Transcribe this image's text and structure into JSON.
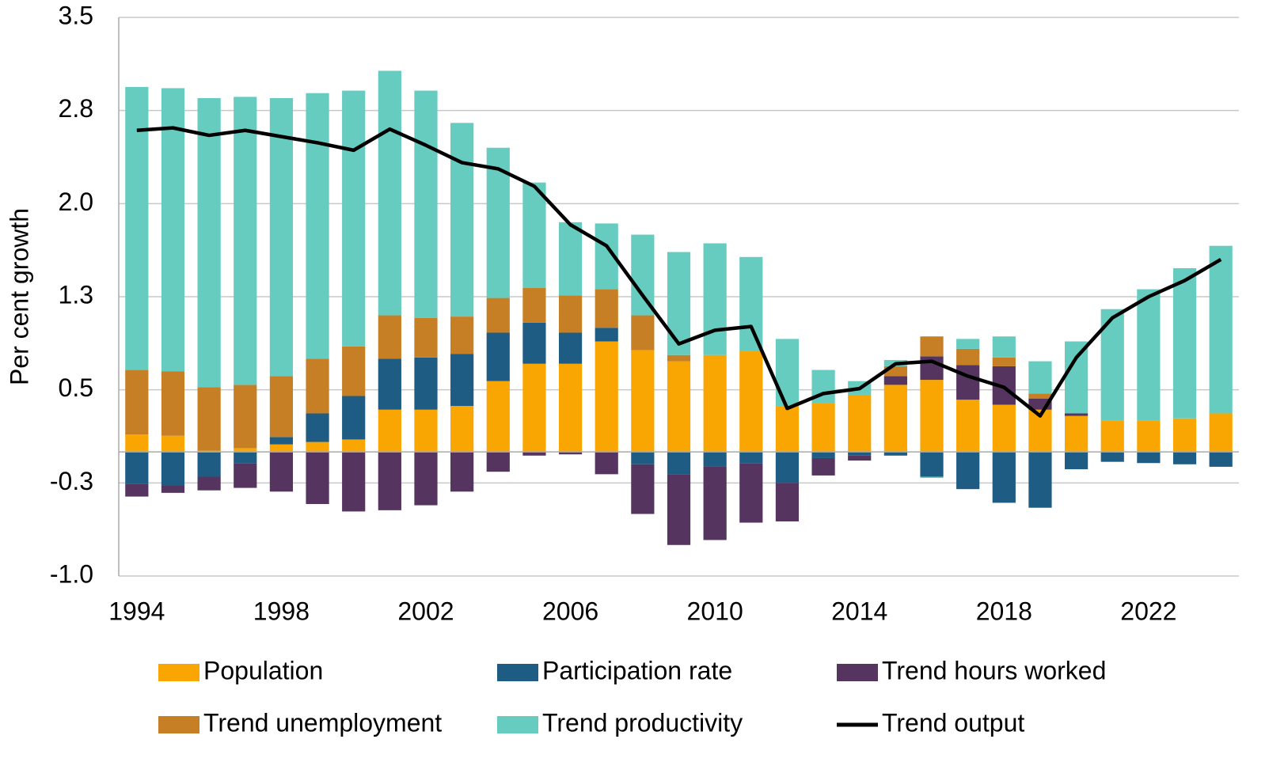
{
  "chart_data": {
    "type": "bar",
    "stacked": true,
    "y_label": "Per cent growth",
    "x": [
      1994,
      1995,
      1996,
      1997,
      1998,
      1999,
      2000,
      2001,
      2002,
      2003,
      2004,
      2005,
      2006,
      2007,
      2008,
      2009,
      2010,
      2011,
      2012,
      2013,
      2014,
      2015,
      2016,
      2017,
      2018,
      2019,
      2020,
      2021,
      2022,
      2023,
      2024
    ],
    "xlim": [
      1993.5,
      2024.5
    ],
    "xticks": [
      1994,
      1998,
      2002,
      2006,
      2010,
      2014,
      2018,
      2022
    ],
    "ylim": [
      -1.0,
      3.5
    ],
    "yticks": [
      {
        "value": 3.5,
        "label": "3.5"
      },
      {
        "value": 2.75,
        "label": "2.8"
      },
      {
        "value": 2.0,
        "label": "2.0"
      },
      {
        "value": 1.25,
        "label": "1.3"
      },
      {
        "value": 0.5,
        "label": "0.5"
      },
      {
        "value": -0.25,
        "label": "-0.3"
      },
      {
        "value": -1.0,
        "label": "-1.0"
      }
    ],
    "grid": true,
    "legend": "bottom",
    "series": [
      {
        "name": "Population",
        "color": "#f9a602",
        "values": [
          0.14,
          0.13,
          0.01,
          0.03,
          0.06,
          0.08,
          0.1,
          0.34,
          0.34,
          0.37,
          0.57,
          0.71,
          0.71,
          0.89,
          0.82,
          0.73,
          0.78,
          0.81,
          0.37,
          0.39,
          0.46,
          0.54,
          0.58,
          0.42,
          0.38,
          0.34,
          0.29,
          0.25,
          0.25,
          0.27,
          0.31
        ]
      },
      {
        "name": "Participation rate",
        "color": "#1f5c84",
        "values": [
          -0.26,
          -0.27,
          -0.2,
          -0.09,
          0.06,
          0.23,
          0.35,
          0.41,
          0.42,
          0.42,
          0.39,
          0.33,
          0.25,
          0.11,
          -0.1,
          -0.18,
          -0.12,
          -0.09,
          -0.25,
          -0.05,
          -0.03,
          -0.03,
          -0.2,
          -0.3,
          -0.41,
          -0.45,
          -0.14,
          -0.08,
          -0.09,
          -0.1,
          -0.12
        ]
      },
      {
        "name": "Trend hours worked",
        "color": "#553560",
        "values": [
          -0.1,
          -0.06,
          -0.11,
          -0.2,
          -0.32,
          -0.42,
          -0.48,
          -0.47,
          -0.43,
          -0.32,
          -0.16,
          -0.03,
          -0.02,
          -0.18,
          -0.4,
          -0.57,
          -0.59,
          -0.48,
          -0.31,
          -0.14,
          -0.04,
          0.07,
          0.19,
          0.28,
          0.31,
          0.09,
          0.02,
          0,
          0,
          0,
          0
        ]
      },
      {
        "name": "Trend unemployment",
        "color": "#c67f25",
        "values": [
          0.52,
          0.52,
          0.51,
          0.51,
          0.49,
          0.44,
          0.4,
          0.35,
          0.32,
          0.3,
          0.28,
          0.28,
          0.3,
          0.31,
          0.28,
          0.05,
          0,
          0,
          0,
          0,
          0,
          0.08,
          0.16,
          0.13,
          0.07,
          0.04,
          0,
          0,
          0,
          0,
          0
        ]
      },
      {
        "name": "Trend productivity",
        "color": "#66ccc0",
        "values": [
          2.28,
          2.28,
          2.33,
          2.32,
          2.24,
          2.14,
          2.06,
          1.97,
          1.83,
          1.56,
          1.21,
          0.85,
          0.59,
          0.53,
          0.65,
          0.83,
          0.9,
          0.76,
          0.54,
          0.27,
          0.11,
          0.05,
          -0.01,
          0.08,
          0.17,
          0.26,
          0.58,
          0.9,
          1.06,
          1.21,
          1.35
        ]
      },
      {
        "name": "Trend output",
        "color": "#000000",
        "type": "line",
        "values": [
          2.59,
          2.61,
          2.55,
          2.59,
          2.54,
          2.49,
          2.43,
          2.6,
          2.47,
          2.33,
          2.28,
          2.14,
          1.83,
          1.66,
          1.26,
          0.87,
          0.98,
          1.01,
          0.35,
          0.47,
          0.51,
          0.71,
          0.73,
          0.61,
          0.52,
          0.29,
          0.76,
          1.08,
          1.25,
          1.38,
          1.55
        ]
      }
    ]
  }
}
